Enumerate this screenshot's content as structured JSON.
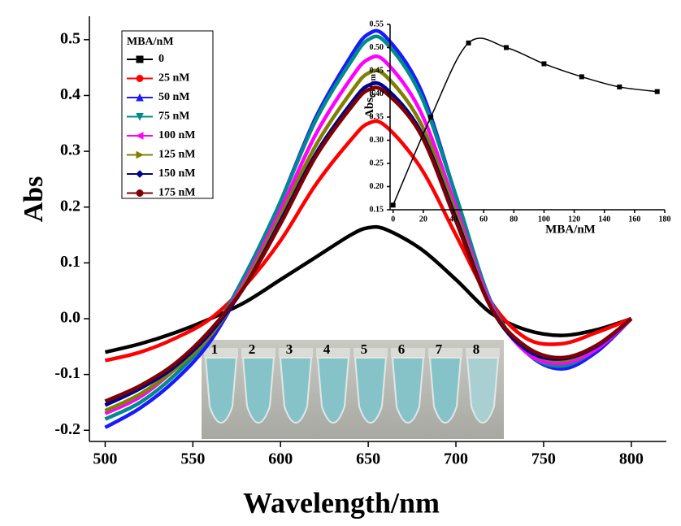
{
  "chart_data": [
    {
      "type": "line",
      "xlabel": "Wavelength/nm",
      "ylabel": "Abs",
      "legend_title": "MBA/nM",
      "legend": "upper left",
      "x": [
        500,
        520,
        540,
        560,
        580,
        600,
        620,
        640,
        650,
        660,
        680,
        700,
        720,
        740,
        760,
        780,
        800
      ],
      "series": [
        {
          "name": "0",
          "color": "#000000",
          "marker": "square",
          "values": [
            -0.06,
            -0.045,
            -0.025,
            0.0,
            0.03,
            0.07,
            0.11,
            0.15,
            0.163,
            0.16,
            0.125,
            0.07,
            0.01,
            -0.02,
            -0.03,
            -0.02,
            0.0
          ]
        },
        {
          "name": "25 nM",
          "color": "#ff0000",
          "marker": "circle",
          "values": [
            -0.075,
            -0.06,
            -0.035,
            0.0,
            0.06,
            0.14,
            0.24,
            0.32,
            0.35,
            0.345,
            0.27,
            0.15,
            0.03,
            -0.035,
            -0.045,
            -0.025,
            0.0
          ]
        },
        {
          "name": "50 nM",
          "color": "#1a1aff",
          "marker": "triangle-up",
          "values": [
            -0.195,
            -0.16,
            -0.11,
            -0.04,
            0.07,
            0.21,
            0.36,
            0.47,
            0.51,
            0.505,
            0.41,
            0.22,
            0.03,
            -0.06,
            -0.09,
            -0.06,
            0.0
          ]
        },
        {
          "name": "75 nM",
          "color": "#008b8b",
          "marker": "triangle-down",
          "values": [
            -0.18,
            -0.15,
            -0.1,
            -0.03,
            0.08,
            0.21,
            0.355,
            0.46,
            0.5,
            0.495,
            0.4,
            0.22,
            0.03,
            -0.06,
            -0.085,
            -0.055,
            0.0
          ]
        },
        {
          "name": "100 nM",
          "color": "#ff00ff",
          "marker": "triangle-left",
          "values": [
            -0.17,
            -0.14,
            -0.09,
            -0.03,
            0.07,
            0.195,
            0.33,
            0.43,
            0.465,
            0.46,
            0.37,
            0.2,
            0.025,
            -0.06,
            -0.08,
            -0.055,
            0.0
          ]
        },
        {
          "name": "125 nM",
          "color": "#808000",
          "marker": "triangle-right",
          "values": [
            -0.165,
            -0.135,
            -0.09,
            -0.03,
            0.065,
            0.185,
            0.31,
            0.405,
            0.44,
            0.435,
            0.35,
            0.19,
            0.02,
            -0.055,
            -0.075,
            -0.05,
            0.0
          ]
        },
        {
          "name": "150 nM",
          "color": "#00008b",
          "marker": "diamond",
          "values": [
            -0.155,
            -0.125,
            -0.085,
            -0.025,
            0.06,
            0.175,
            0.295,
            0.385,
            0.418,
            0.413,
            0.335,
            0.18,
            0.02,
            -0.055,
            -0.072,
            -0.05,
            0.0
          ]
        },
        {
          "name": "175 nM",
          "color": "#800000",
          "marker": "circle",
          "values": [
            -0.148,
            -0.12,
            -0.08,
            -0.02,
            0.06,
            0.17,
            0.29,
            0.378,
            0.41,
            0.405,
            0.33,
            0.175,
            0.02,
            -0.05,
            -0.07,
            -0.048,
            0.0
          ]
        }
      ],
      "xlim": [
        491,
        820
      ],
      "xticks": [
        500,
        550,
        600,
        650,
        700,
        750,
        800
      ],
      "ylim": [
        -0.22,
        0.542
      ],
      "yticks": [
        -0.2,
        -0.1,
        {
          "value": 0,
          "label": "0.0"
        },
        0.1,
        0.2,
        0.3,
        0.4,
        0.5
      ]
    },
    {
      "type": "line",
      "xlabel": "MBA/nM",
      "ylabel": "Abs",
      "ylabel_sub": "652nm",
      "color": "#000000",
      "marker": "square",
      "x": [
        0,
        25,
        50,
        75,
        100,
        125,
        150,
        175
      ],
      "values": [
        0.16,
        0.35,
        0.51,
        0.5,
        0.465,
        0.437,
        0.415,
        0.405
      ],
      "xlim": [
        -2,
        180
      ],
      "xticks": [
        0,
        20,
        40,
        60,
        80,
        100,
        120,
        140,
        160,
        180
      ],
      "ylim": [
        0.15,
        0.55
      ],
      "yticks": [
        0.15,
        {
          "value": 0.2,
          "label": "0.20"
        },
        0.25,
        {
          "value": 0.3,
          "label": "0.30"
        },
        0.35,
        {
          "value": 0.4,
          "label": "0.40"
        },
        0.45,
        {
          "value": 0.5,
          "label": "0.50"
        },
        0.55
      ]
    }
  ],
  "photo_labels": [
    "1",
    "2",
    "3",
    "4",
    "5",
    "6",
    "7",
    "8"
  ]
}
